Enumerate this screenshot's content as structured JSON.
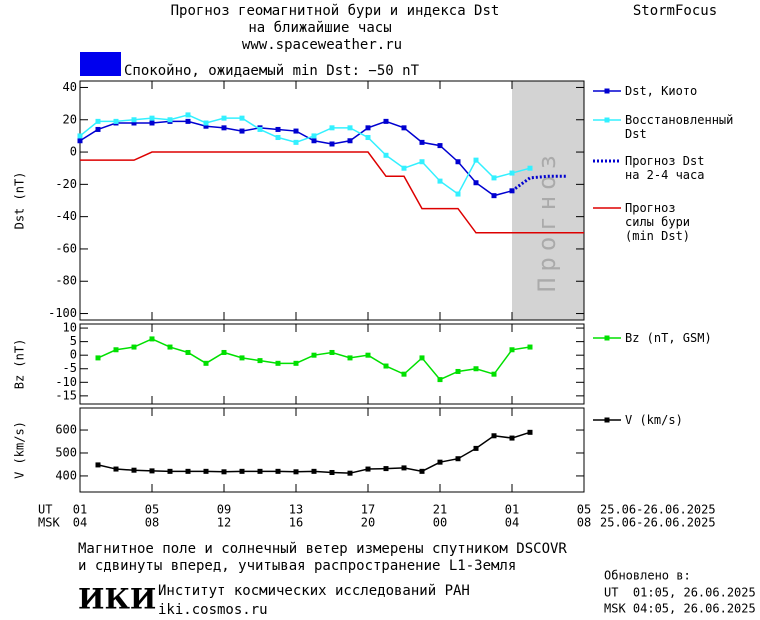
{
  "header": {
    "title_lines": [
      "Прогноз геомагнитной бури и индекса Dst",
      "на ближайшие часы",
      "www.spaceweather.ru"
    ],
    "brand": "StormFocus"
  },
  "status": {
    "text": "Спокойно, ожидаемый min Dst: −50 nT",
    "color": "#0000ee"
  },
  "chart_data": [
    {
      "type": "line",
      "y_label": "Dst (nT)",
      "xlim": [
        0,
        28
      ],
      "ylim": [
        -104,
        44
      ],
      "yticks": [
        40,
        20,
        0,
        -20,
        -40,
        -60,
        -80,
        -100
      ],
      "forecast_band": {
        "x": [
          24,
          28
        ],
        "label": "Прогноз",
        "color": "#d3d3d3"
      },
      "series": [
        {
          "name": "Dst, Киото",
          "color": "#0000d0",
          "markers": true,
          "x": [
            0,
            1,
            2,
            3,
            4,
            5,
            6,
            7,
            8,
            9,
            10,
            11,
            12,
            13,
            14,
            15,
            16,
            17,
            18,
            19,
            20,
            21,
            22,
            23,
            24
          ],
          "values": [
            7,
            14,
            18,
            18,
            18,
            19,
            19,
            16,
            15,
            13,
            15,
            14,
            13,
            7,
            5,
            7,
            15,
            19,
            15,
            6,
            4,
            -6,
            -19,
            -27,
            -24
          ]
        },
        {
          "name": "Восстановленный\nDst",
          "color": "#33f0ff",
          "markers": true,
          "x": [
            0,
            1,
            2,
            3,
            4,
            5,
            6,
            7,
            8,
            9,
            10,
            11,
            12,
            13,
            14,
            15,
            16,
            17,
            18,
            19,
            20,
            21,
            22,
            23,
            24,
            25
          ],
          "values": [
            10,
            19,
            19,
            20,
            21,
            20,
            23,
            18,
            21,
            21,
            14,
            9,
            6,
            10,
            15,
            15,
            9,
            -2,
            -10,
            -6,
            -18,
            -26,
            -5,
            -16,
            -13,
            -10
          ]
        },
        {
          "name": "Прогноз Dst\nна 2-4 часа",
          "color": "#0000d0",
          "markers": false,
          "dotted": true,
          "x": [
            24,
            25,
            26,
            27
          ],
          "values": [
            -24,
            -16,
            -15,
            -15
          ]
        },
        {
          "name": "Прогноз\nсилы бури\n(min Dst)",
          "color": "#dd0000",
          "markers": false,
          "x": [
            0,
            3,
            4,
            16,
            17,
            18,
            19,
            21,
            22,
            28
          ],
          "values": [
            -5,
            -5,
            0,
            0,
            -15,
            -15,
            -35,
            -35,
            -50,
            -50
          ]
        }
      ]
    },
    {
      "type": "line",
      "y_label": "Bz (nT)",
      "xlim": [
        0,
        28
      ],
      "ylim": [
        -18,
        11.5
      ],
      "yticks": [
        10,
        5,
        0,
        -5,
        -10,
        -15
      ],
      "series": [
        {
          "name": "Bz (nT, GSM)",
          "color": "#00e000",
          "markers": true,
          "x": [
            1,
            2,
            3,
            4,
            5,
            6,
            7,
            8,
            9,
            10,
            11,
            12,
            13,
            14,
            15,
            16,
            17,
            18,
            19,
            20,
            21,
            22,
            23,
            24,
            25
          ],
          "values": [
            -1,
            2,
            3,
            6,
            3,
            1,
            -3,
            1,
            -1,
            -2,
            -3,
            -3,
            0,
            1,
            -1,
            0,
            -4,
            -7,
            -1,
            -9,
            -6,
            -5,
            -7,
            2,
            3
          ]
        }
      ]
    },
    {
      "type": "line",
      "y_label": "V (km/s)",
      "xlim": [
        0,
        28
      ],
      "ylim": [
        330,
        696
      ],
      "yticks": [
        600,
        500,
        400
      ],
      "x_label_ut": "UT",
      "x_label_msk": "MSK",
      "xticks": [
        {
          "value": 0,
          "label": "01"
        },
        {
          "value": 4,
          "label": "05"
        },
        {
          "value": 8,
          "label": "09"
        },
        {
          "value": 12,
          "label": "13"
        },
        {
          "value": 16,
          "label": "17"
        },
        {
          "value": 20,
          "label": "21"
        },
        {
          "value": 24,
          "label": "01"
        },
        {
          "value": 28,
          "label": "05"
        }
      ],
      "xtick_labels_msk": [
        "04",
        "08",
        "12",
        "16",
        "20",
        "00",
        "04",
        "08"
      ],
      "date_range_ut": "25.06-26.06.2025",
      "date_range_msk": "25.06-26.06.2025",
      "series": [
        {
          "name": "V (km/s)",
          "color": "#000000",
          "markers": true,
          "x": [
            1,
            2,
            3,
            4,
            5,
            6,
            7,
            8,
            9,
            10,
            11,
            12,
            13,
            14,
            15,
            16,
            17,
            18,
            19,
            20,
            21,
            22,
            23,
            24,
            25
          ],
          "values": [
            448,
            430,
            425,
            422,
            420,
            420,
            420,
            418,
            420,
            420,
            420,
            418,
            420,
            415,
            412,
            430,
            432,
            435,
            420,
            460,
            475,
            520,
            575,
            565,
            590
          ]
        }
      ]
    }
  ],
  "footer": {
    "note_lines": [
      "Магнитное поле и солнечный ветер измерены спутником DSCOVR",
      "и сдвинуты вперед, учитывая распространение L1-Земля"
    ],
    "logo": "ИКИ",
    "institute": "Институт космических исследований РАН",
    "site": "iki.cosmos.ru",
    "updated_label": "Обновлено в:",
    "updated_ut": "UT  01:05, 26.06.2025",
    "updated_msk": "MSK 04:05, 26.06.2025"
  }
}
